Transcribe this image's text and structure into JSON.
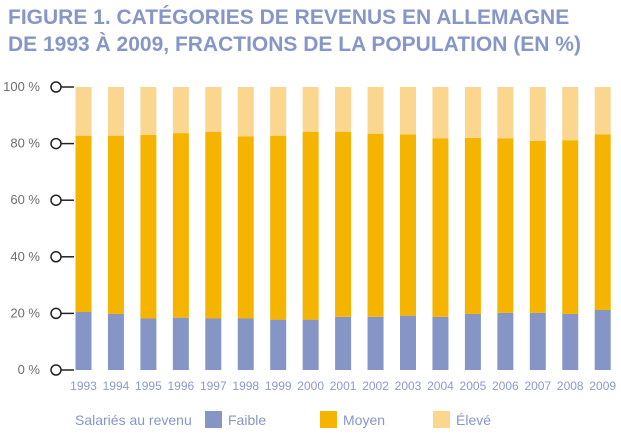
{
  "title": {
    "line1": "FIGURE 1. CATÉGORIES DE REVENUS EN ALLEMAGNE",
    "line2": "DE 1993 À 2009, FRACTIONS DE LA POPULATION (EN %)"
  },
  "colors": {
    "faible": "#8595c6",
    "moyen": "#f5b400",
    "eleve": "#fad68f",
    "axis": "#222222",
    "title": "#8696c6"
  },
  "chart_data": {
    "type": "bar",
    "stacked": true,
    "categories": [
      "1993",
      "1994",
      "1995",
      "1996",
      "1997",
      "1998",
      "1999",
      "2000",
      "2001",
      "2002",
      "2003",
      "2004",
      "2005",
      "2006",
      "2007",
      "2008",
      "2009"
    ],
    "series": [
      {
        "name": "Faible",
        "values": [
          20.5,
          19.8,
          18.2,
          18.5,
          18.2,
          18.2,
          17.8,
          17.8,
          18.8,
          18.8,
          19.2,
          18.8,
          19.8,
          20.2,
          20.2,
          19.8,
          21.2
        ]
      },
      {
        "name": "Moyen",
        "values": [
          62.3,
          63.0,
          64.9,
          65.2,
          66.0,
          64.4,
          65.0,
          66.4,
          65.4,
          64.7,
          64.0,
          63.0,
          62.2,
          61.6,
          60.8,
          61.4,
          62.1
        ]
      },
      {
        "name": "Élevé",
        "values": [
          17.2,
          17.2,
          16.9,
          16.3,
          15.8,
          17.4,
          17.2,
          15.8,
          15.8,
          16.5,
          16.8,
          18.2,
          18.0,
          18.2,
          19.0,
          18.8,
          16.7
        ]
      }
    ],
    "ylim": [
      0,
      100
    ],
    "yticks": [
      "0 %",
      "20 %",
      "40 %",
      "60 %",
      "80 %",
      "100 %"
    ],
    "legend": {
      "title": "Salariés au revenu",
      "items": [
        "Faible",
        "Moyen",
        "Élevé"
      ],
      "position": "bottom"
    }
  }
}
